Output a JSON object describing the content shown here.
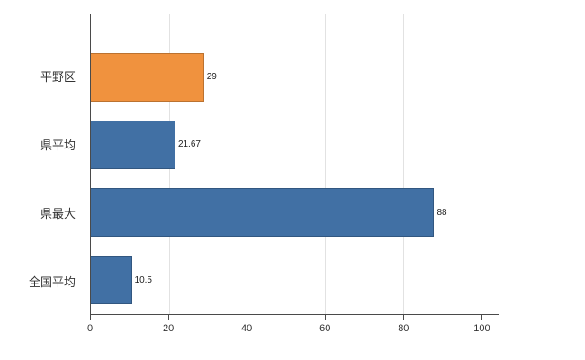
{
  "chart_data": {
    "type": "bar",
    "orientation": "horizontal",
    "title": "",
    "xlabel": "",
    "ylabel": "",
    "categories": [
      "平野区",
      "県平均",
      "県最大",
      "全国平均"
    ],
    "values": [
      29,
      21.67,
      88,
      10.5
    ],
    "value_labels": [
      "29",
      "21.67",
      "88",
      "10.5"
    ],
    "bar_colors": [
      "#f0923e",
      "#4170a4",
      "#4170a4",
      "#4170a4"
    ],
    "xlim": [
      0,
      104.5
    ],
    "xticks": [
      0,
      20,
      40,
      60,
      80,
      100
    ],
    "grid": true,
    "legend": "none"
  },
  "colors": {
    "background": "#ffffff",
    "axis": "#4a4a4a",
    "gridline": "#e2e2e2",
    "category_text": "#333333",
    "tick_text": "#333333",
    "value_text": "#222222",
    "orange": "#f0923e",
    "blue": "#4170a4"
  }
}
